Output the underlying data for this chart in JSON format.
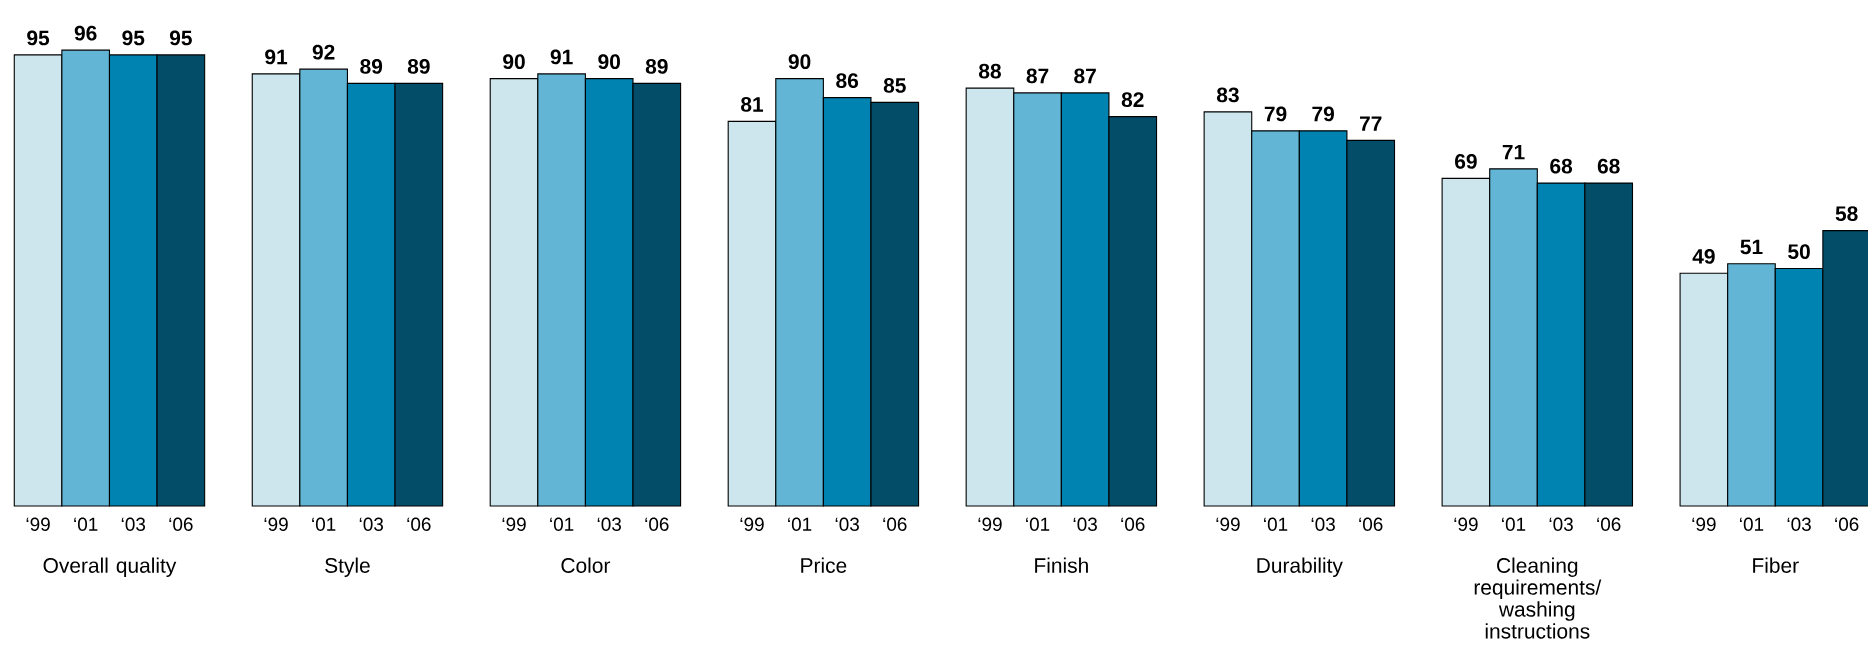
{
  "chart_data": {
    "type": "bar",
    "categories": [
      "Overall quality",
      "Style",
      "Color",
      "Price",
      "Finish",
      "Durability",
      "Cleaning requirements/ washing instructions",
      "Fiber"
    ],
    "series": [
      {
        "name": "‘99",
        "color": "#cde6ed",
        "values": [
          95,
          91,
          90,
          81,
          88,
          83,
          69,
          49
        ]
      },
      {
        "name": "‘01",
        "color": "#62b5d4",
        "values": [
          96,
          92,
          91,
          90,
          87,
          79,
          71,
          51
        ]
      },
      {
        "name": "‘03",
        "color": "#0083b0",
        "values": [
          95,
          89,
          90,
          86,
          87,
          79,
          68,
          50
        ]
      },
      {
        "name": "‘06",
        "color": "#044d69",
        "values": [
          95,
          89,
          89,
          85,
          82,
          77,
          68,
          58
        ]
      }
    ],
    "data_labels": true
  }
}
